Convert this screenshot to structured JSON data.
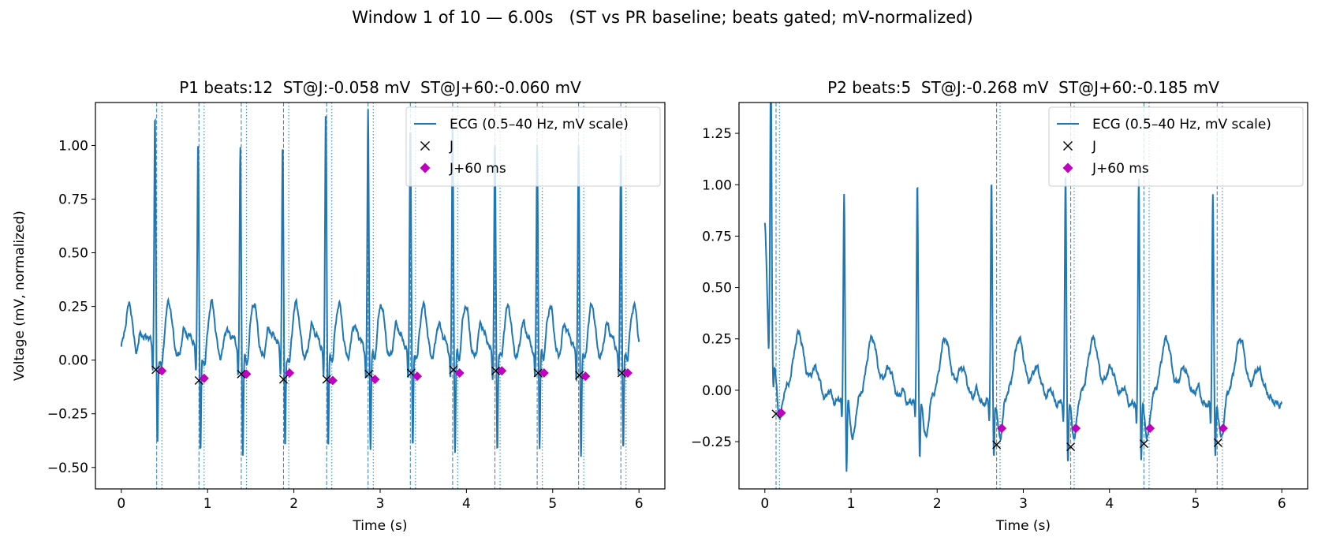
{
  "figure": {
    "suptitle": "Window 1 of 10 — 6.00s   (ST vs PR baseline; beats gated; mV-normalized)"
  },
  "colors": {
    "ecg": "#1f77b4",
    "j_marker": "#000000",
    "j60_marker": "#bf00bf",
    "qrs_line": "#1f77b4"
  },
  "chart_data": [
    {
      "type": "line",
      "title": "P1 beats:12  ST@J:-0.058 mV  ST@J+60:-0.060 mV",
      "xlabel": "Time (s)",
      "ylabel": "Voltage (mV, normalized)",
      "xlim": [
        -0.3,
        6.3
      ],
      "ylim": [
        -0.6,
        1.2
      ],
      "xticks": [
        0,
        1,
        2,
        3,
        4,
        5,
        6
      ],
      "yticks": [
        -0.5,
        -0.25,
        0.0,
        0.25,
        0.5,
        0.75,
        1.0
      ],
      "ytick_labels": [
        "−0.50",
        "−0.25",
        "0.00",
        "0.25",
        "0.50",
        "0.75",
        "1.00"
      ],
      "legend": {
        "position": "top-right",
        "entries": [
          "ECG (0.5–40 Hz, mV scale)",
          "J",
          "J+60 ms"
        ]
      },
      "ecg": {
        "t_start": 0.0,
        "t_end": 6.0,
        "start_value": 0.05,
        "beats": [
          {
            "r": 0.39,
            "r_amp": 1.07,
            "s_amp": -0.45
          },
          {
            "r": 0.89,
            "r_amp": 0.97,
            "s_amp": -0.49
          },
          {
            "r": 1.38,
            "r_amp": 0.93,
            "s_amp": -0.49
          },
          {
            "r": 1.87,
            "r_amp": 0.95,
            "s_amp": -0.47
          },
          {
            "r": 2.37,
            "r_amp": 1.13,
            "s_amp": -0.47
          },
          {
            "r": 2.86,
            "r_amp": 1.1,
            "s_amp": -0.48
          },
          {
            "r": 3.35,
            "r_amp": 1.05,
            "s_amp": -0.47
          },
          {
            "r": 3.84,
            "r_amp": 1.05,
            "s_amp": -0.5
          },
          {
            "r": 4.33,
            "r_amp": 0.97,
            "s_amp": -0.49
          },
          {
            "r": 4.82,
            "r_amp": 0.96,
            "s_amp": -0.49
          },
          {
            "r": 5.3,
            "r_amp": 0.95,
            "s_amp": -0.51
          },
          {
            "r": 5.79,
            "r_amp": 0.93,
            "s_amp": -0.49
          }
        ]
      },
      "j_points": [
        [
          0.4,
          -0.045
        ],
        [
          0.9,
          -0.095
        ],
        [
          1.39,
          -0.065
        ],
        [
          1.88,
          -0.09
        ],
        [
          2.38,
          -0.09
        ],
        [
          2.87,
          -0.065
        ],
        [
          3.36,
          -0.06
        ],
        [
          3.85,
          -0.045
        ],
        [
          4.34,
          -0.05
        ],
        [
          4.83,
          -0.06
        ],
        [
          5.31,
          -0.07
        ],
        [
          5.8,
          -0.06
        ]
      ],
      "j60_points": [
        [
          0.47,
          -0.05
        ],
        [
          0.96,
          -0.085
        ],
        [
          1.45,
          -0.065
        ],
        [
          1.95,
          -0.06
        ],
        [
          2.45,
          -0.095
        ],
        [
          2.94,
          -0.09
        ],
        [
          3.43,
          -0.075
        ],
        [
          3.92,
          -0.06
        ],
        [
          4.41,
          -0.05
        ],
        [
          4.9,
          -0.06
        ],
        [
          5.38,
          -0.075
        ],
        [
          5.87,
          -0.06
        ]
      ],
      "qrs_onset_lines": [
        0.41,
        0.9,
        1.39,
        1.88,
        2.38,
        2.86,
        3.35,
        3.84,
        4.33,
        4.82,
        5.3,
        5.79
      ],
      "j_lines": [
        0.47,
        0.96,
        1.45,
        1.94,
        2.44,
        2.92,
        3.41,
        3.9,
        4.39,
        4.88,
        5.36,
        5.85
      ]
    },
    {
      "type": "line",
      "title": "P2 beats:5  ST@J:-0.268 mV  ST@J+60:-0.185 mV",
      "xlabel": "Time (s)",
      "ylabel": "",
      "xlim": [
        -0.3,
        6.3
      ],
      "ylim": [
        -0.48,
        1.4
      ],
      "xticks": [
        0,
        1,
        2,
        3,
        4,
        5,
        6
      ],
      "yticks": [
        -0.25,
        0.0,
        0.25,
        0.5,
        0.75,
        1.0,
        1.25
      ],
      "ytick_labels": [
        "−0.25",
        "0.00",
        "0.25",
        "0.50",
        "0.75",
        "1.00",
        "1.25"
      ],
      "legend": {
        "position": "top-right",
        "entries": [
          "ECG (0.5–40 Hz, mV scale)",
          "J",
          "J+60 ms"
        ]
      },
      "ecg": {
        "t_start": 0.0,
        "t_end": 6.0,
        "start_value": 0.43,
        "beats": [
          {
            "r": 0.07,
            "r_amp": 1.32,
            "s_amp": -0.17
          },
          {
            "r": 0.92,
            "r_amp": 0.95,
            "s_amp": -0.4
          },
          {
            "r": 1.77,
            "r_amp": 1.01,
            "s_amp": -0.35
          },
          {
            "r": 2.63,
            "r_amp": 1.02,
            "s_amp": -0.34
          },
          {
            "r": 3.49,
            "r_amp": 1.05,
            "s_amp": -0.35
          },
          {
            "r": 4.34,
            "r_amp": 1.05,
            "s_amp": -0.32
          },
          {
            "r": 5.2,
            "r_amp": 0.99,
            "s_amp": -0.31
          }
        ]
      },
      "j_points": [
        [
          0.13,
          -0.115
        ],
        [
          2.69,
          -0.265
        ],
        [
          3.55,
          -0.275
        ],
        [
          4.4,
          -0.26
        ],
        [
          5.26,
          -0.255
        ]
      ],
      "j60_points": [
        [
          0.19,
          -0.11
        ],
        [
          2.75,
          -0.185
        ],
        [
          3.61,
          -0.185
        ],
        [
          4.47,
          -0.185
        ],
        [
          5.32,
          -0.185
        ]
      ],
      "qrs_onset_lines": [
        0.13,
        2.69,
        3.55,
        4.4,
        5.25
      ],
      "j_lines": [
        0.17,
        2.73,
        3.59,
        4.46,
        5.31
      ]
    }
  ]
}
